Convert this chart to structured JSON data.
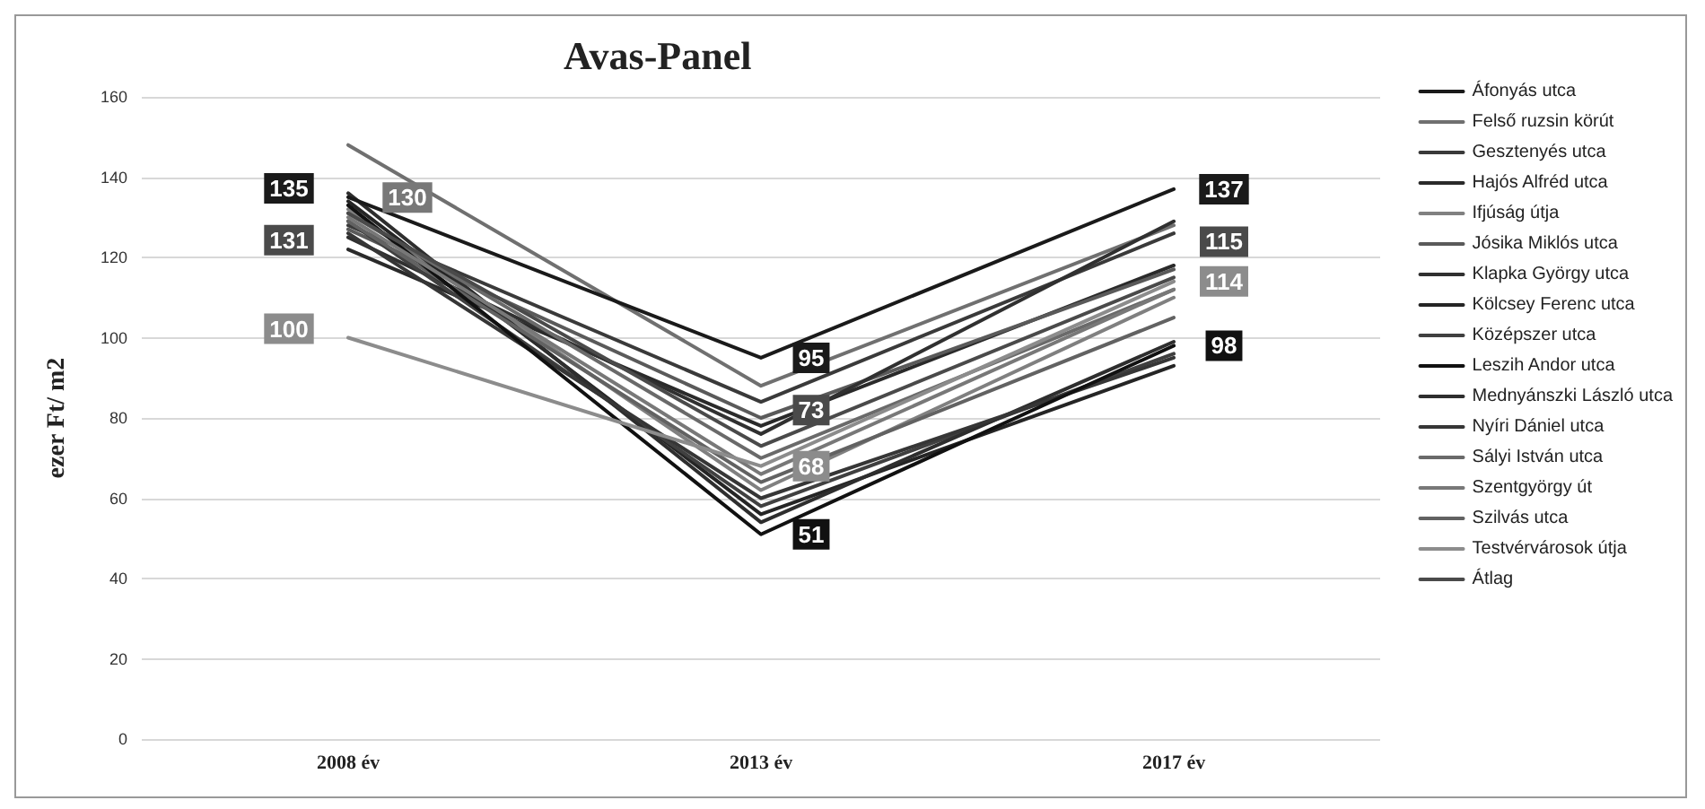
{
  "chart_data": {
    "type": "line",
    "title": "Avas-Panel",
    "ylabel": "ezer Ft/ m2",
    "categories": [
      "2008 év",
      "2013 év",
      "2017 év"
    ],
    "ylim": [
      0,
      160
    ],
    "yticks": [
      0,
      20,
      40,
      60,
      80,
      100,
      120,
      140,
      160
    ],
    "grid": "y",
    "legend": "right",
    "marker": "none",
    "line_style": "solid",
    "series": [
      {
        "name": "Áfonyás utca",
        "color": "#1a1a1a",
        "values": [
          135,
          95,
          137
        ],
        "value_labels": [
          "135",
          "95",
          "137"
        ]
      },
      {
        "name": "Felső ruzsin körút",
        "color": "#707070",
        "values": [
          148,
          88,
          128
        ]
      },
      {
        "name": "Gesztenyés utca",
        "color": "#3a3a3a",
        "values": [
          128,
          84,
          126
        ]
      },
      {
        "name": "Hajós Alfréd utca",
        "color": "#2a2a2a",
        "values": [
          122,
          78,
          118
        ]
      },
      {
        "name": "Ifjúság útja",
        "color": "#808080",
        "values": [
          132,
          62,
          110
        ]
      },
      {
        "name": "Jósika Miklós utca",
        "color": "#5a5a5a",
        "values": [
          127,
          80,
          117
        ]
      },
      {
        "name": "Klapka György utca",
        "color": "#303030",
        "values": [
          125,
          76,
          129
        ]
      },
      {
        "name": "Kölcsey Ferenc utca",
        "color": "#252525",
        "values": [
          134,
          56,
          93
        ]
      },
      {
        "name": "Középszer utca",
        "color": "#404040",
        "values": [
          129,
          58,
          96
        ]
      },
      {
        "name": "Leszih Andor utca",
        "color": "#111111",
        "values": [
          133,
          51,
          98
        ],
        "value_labels": [
          null,
          "51",
          "98"
        ]
      },
      {
        "name": "Mednyánszki László utca",
        "color": "#2e2e2e",
        "values": [
          136,
          54,
          99
        ]
      },
      {
        "name": "Nyíri Dániel utca",
        "color": "#363636",
        "values": [
          126,
          60,
          95
        ]
      },
      {
        "name": "Sályi István utca",
        "color": "#6a6a6a",
        "values": [
          131,
          70,
          112
        ]
      },
      {
        "name": "Szentgyörgy út",
        "color": "#787878",
        "values": [
          130,
          66,
          112
        ],
        "value_labels": [
          "130",
          null,
          null
        ]
      },
      {
        "name": "Szilvás utca",
        "color": "#626262",
        "values": [
          129,
          64,
          105
        ]
      },
      {
        "name": "Testvérvárosok útja",
        "color": "#8c8c8c",
        "values": [
          100,
          68,
          114
        ],
        "value_labels": [
          "100",
          "68",
          "114"
        ]
      },
      {
        "name": "Átlag",
        "color": "#4a4a4a",
        "values": [
          131,
          73,
          115
        ],
        "value_labels": [
          "131",
          "73",
          "115"
        ]
      }
    ]
  }
}
